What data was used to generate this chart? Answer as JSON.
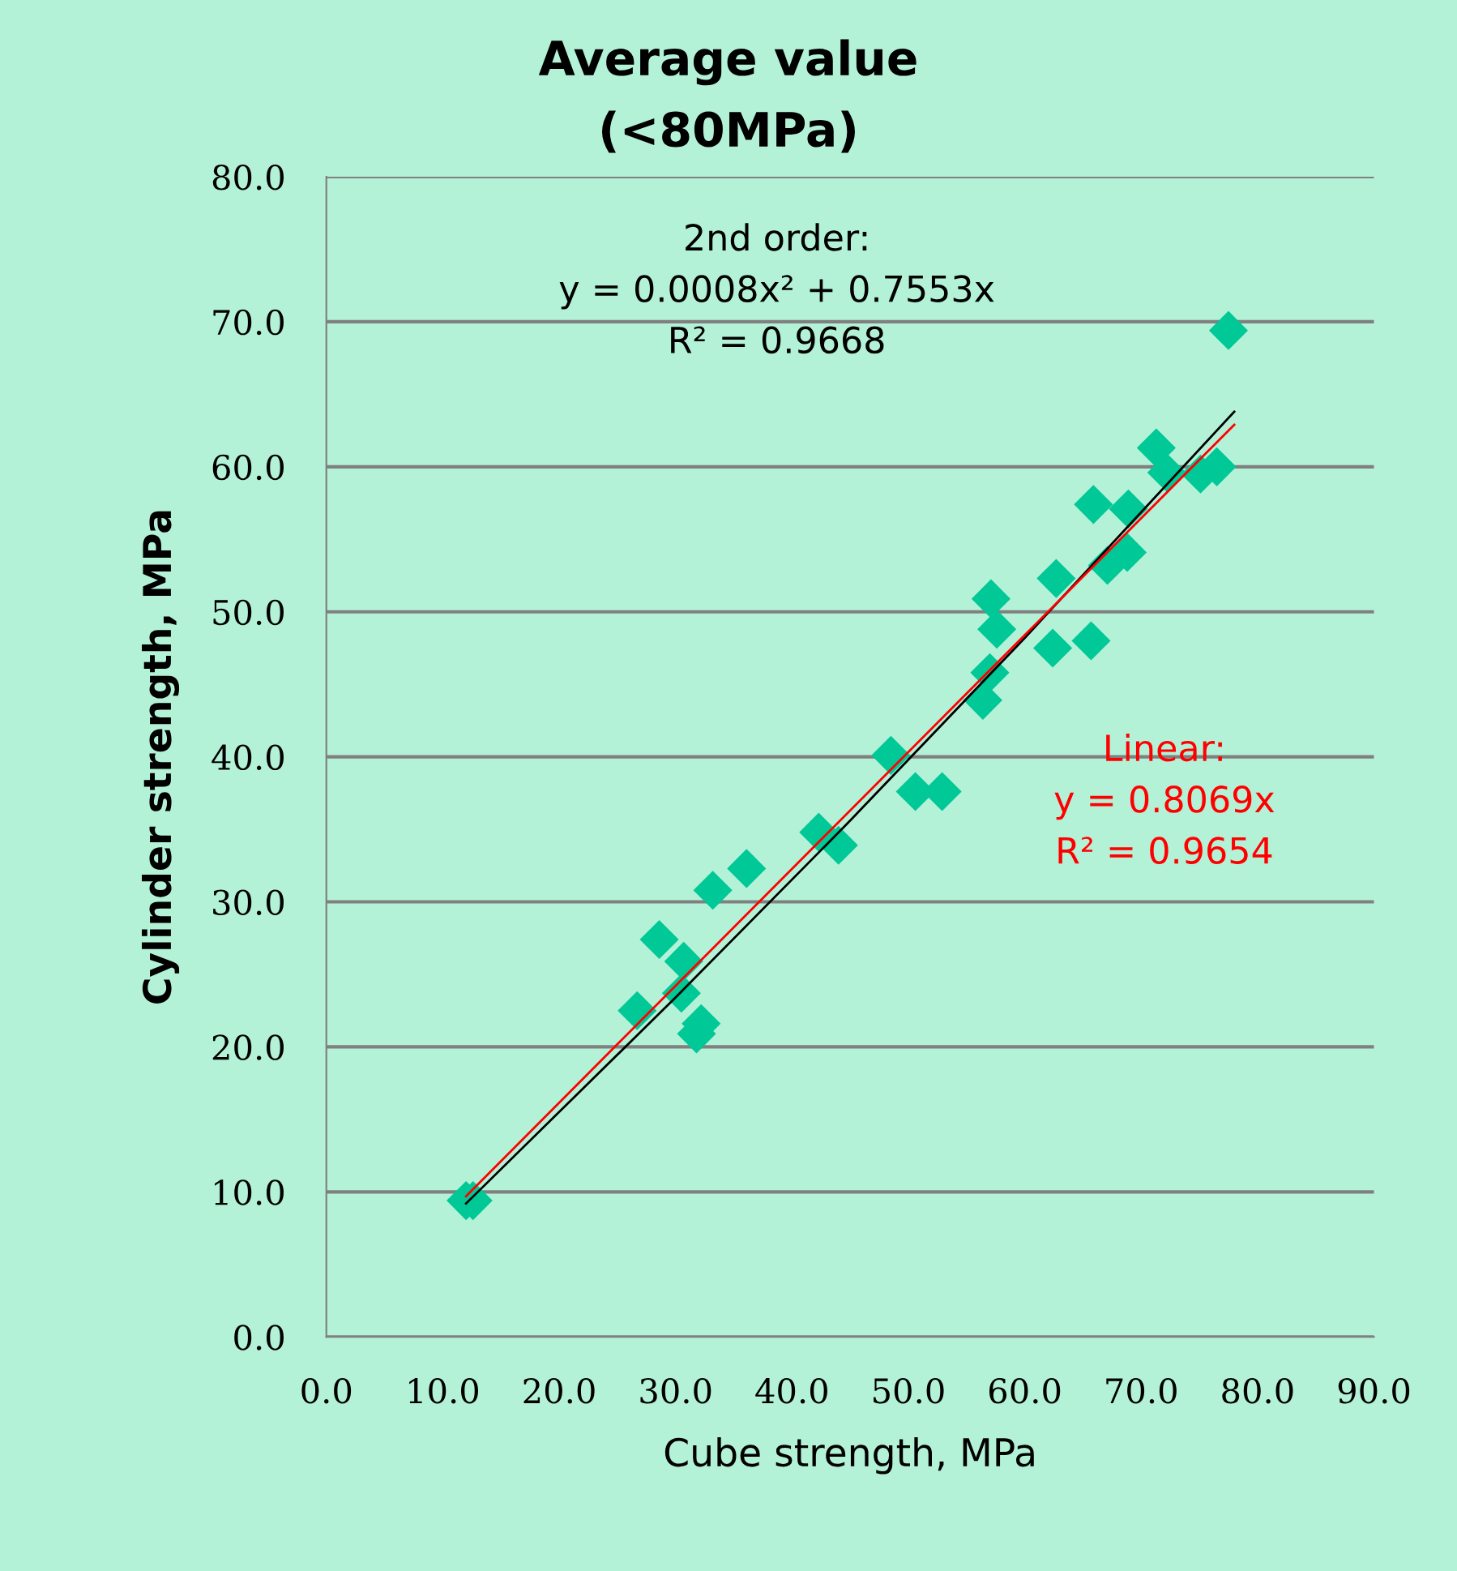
{
  "chart_data": {
    "type": "scatter",
    "title": "Average value\n(<80MPa)",
    "xlabel": "Cube strength, MPa",
    "ylabel": "Cylinder strength, MPa",
    "xlim": [
      0,
      90
    ],
    "ylim": [
      0,
      80
    ],
    "xticks": [
      {
        "value": 0,
        "label": "0.0"
      },
      {
        "value": 10,
        "label": "10.0"
      },
      {
        "value": 20,
        "label": "20.0"
      },
      {
        "value": 30,
        "label": "30.0"
      },
      {
        "value": 40,
        "label": "40.0"
      },
      {
        "value": 50,
        "label": "50.0"
      },
      {
        "value": 60,
        "label": "60.0"
      },
      {
        "value": 70,
        "label": "70.0"
      },
      {
        "value": 80,
        "label": "80.0"
      },
      {
        "value": 90,
        "label": "90.0"
      }
    ],
    "yticks": [
      {
        "value": 0,
        "label": "0.0"
      },
      {
        "value": 10,
        "label": "10.0"
      },
      {
        "value": 20,
        "label": "20.0"
      },
      {
        "value": 30,
        "label": "30.0"
      },
      {
        "value": 40,
        "label": "40.0"
      },
      {
        "value": 50,
        "label": "50.0"
      },
      {
        "value": 60,
        "label": "60.0"
      },
      {
        "value": 70,
        "label": "70.0"
      },
      {
        "value": 80,
        "label": "80.0"
      }
    ],
    "grid": "y",
    "legend": false,
    "series": [
      {
        "marker": "diamond",
        "color": "#00c896",
        "x": [
          12.0,
          12.6,
          26.7,
          28.6,
          30.7,
          30.5,
          32.2,
          31.8,
          33.2,
          36.1,
          42.3,
          44.0,
          48.5,
          50.6,
          52.9,
          56.4,
          57.0,
          57.1,
          57.6,
          62.4,
          62.7,
          65.7,
          65.9,
          67.1,
          68.8,
          68.9,
          71.3,
          72.2,
          75.1,
          76.5,
          77.5
        ],
        "values": [
          9.4,
          9.4,
          22.5,
          27.4,
          25.9,
          23.7,
          21.6,
          20.9,
          30.8,
          32.3,
          34.8,
          33.9,
          40.1,
          37.6,
          37.6,
          43.9,
          45.8,
          50.9,
          48.8,
          47.5,
          52.3,
          48.0,
          57.4,
          53.2,
          54.1,
          57.1,
          61.3,
          59.6,
          59.5,
          60.0,
          69.4
        ]
      },
      {
        "type": "line",
        "marker": "none",
        "color": "#000000",
        "x": [
          12,
          30,
          45,
          60,
          78
        ],
        "values": [
          9.2,
          23.4,
          35.6,
          48.2,
          63.8
        ]
      },
      {
        "type": "line",
        "marker": "none",
        "color": "#ff0000",
        "x": [
          12,
          78
        ],
        "values": [
          9.7,
          62.9
        ]
      }
    ],
    "annotations": [
      "2nd order:\ny = 0.0008x² + 0.7553x\nR² = 0.9668",
      "Linear:\ny = 0.8069x\nR² = 0.9654"
    ]
  }
}
